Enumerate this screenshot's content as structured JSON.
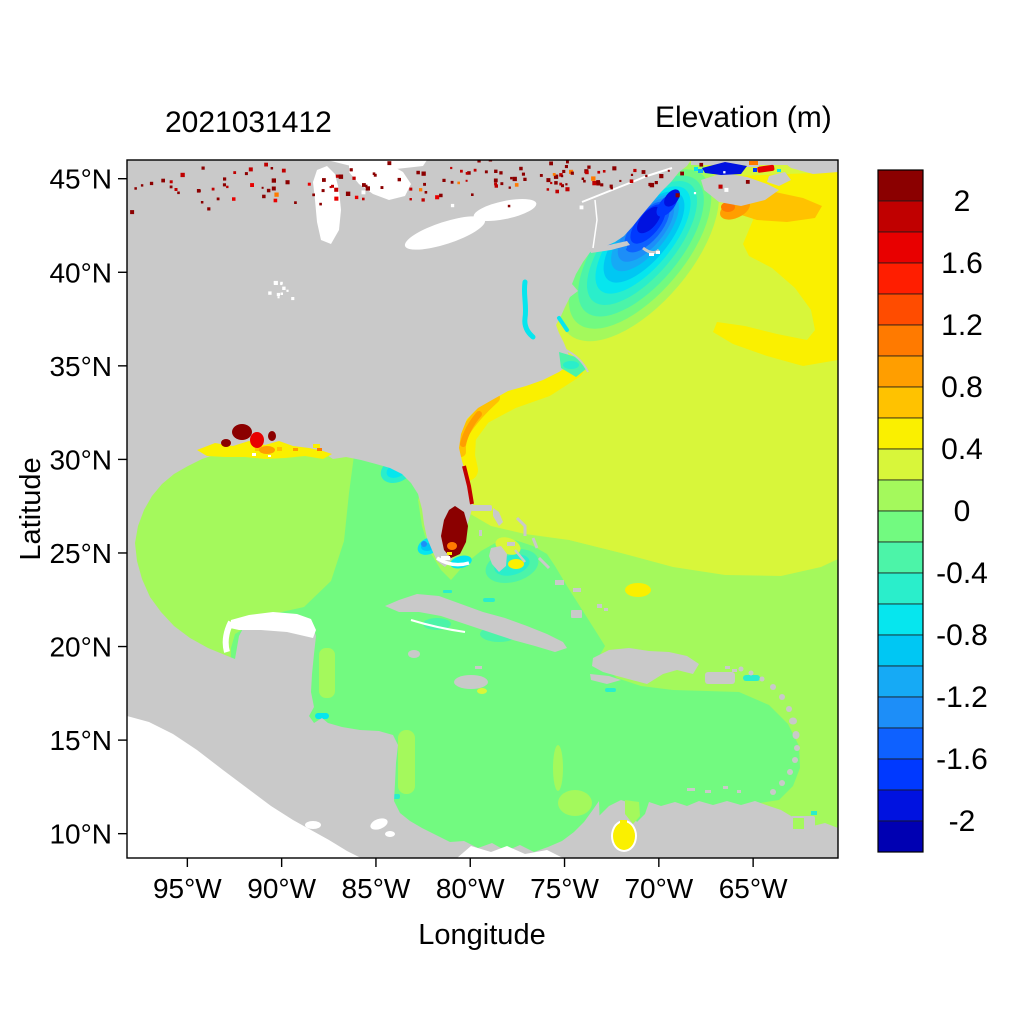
{
  "chart_data": {
    "type": "heatmap",
    "title": "2021031412",
    "colorbar_title": "Elevation (m)",
    "xlabel": "Longitude",
    "ylabel": "Latitude",
    "xlim": [
      -98.2,
      -60.5
    ],
    "ylim": [
      8.7,
      46.0
    ],
    "x_ticks": [
      {
        "v": -95,
        "label": "95°W"
      },
      {
        "v": -90,
        "label": "90°W"
      },
      {
        "v": -85,
        "label": "85°W"
      },
      {
        "v": -80,
        "label": "80°W"
      },
      {
        "v": -75,
        "label": "75°W"
      },
      {
        "v": -70,
        "label": "70°W"
      },
      {
        "v": -65,
        "label": "65°W"
      }
    ],
    "y_ticks": [
      {
        "v": 45,
        "label": "45°N"
      },
      {
        "v": 40,
        "label": "40°N"
      },
      {
        "v": 35,
        "label": "35°N"
      },
      {
        "v": 30,
        "label": "30°N"
      },
      {
        "v": 25,
        "label": "25°N"
      },
      {
        "v": 20,
        "label": "20°N"
      },
      {
        "v": 15,
        "label": "15°N"
      },
      {
        "v": 10,
        "label": "10°N"
      }
    ],
    "colorbar": {
      "units": "m",
      "step": 0.2,
      "tick_labels": [
        {
          "v": 2,
          "label": "2"
        },
        {
          "v": 1.6,
          "label": "1.6"
        },
        {
          "v": 1.2,
          "label": "1.2"
        },
        {
          "v": 0.8,
          "label": "0.8"
        },
        {
          "v": 0.4,
          "label": "0.4"
        },
        {
          "v": 0,
          "label": "0"
        },
        {
          "v": -0.4,
          "label": "-0.4"
        },
        {
          "v": -0.8,
          "label": "-0.8"
        },
        {
          "v": -1.2,
          "label": "-1.2"
        },
        {
          "v": -1.6,
          "label": "-1.6"
        },
        {
          "v": -2,
          "label": "-2"
        }
      ],
      "levels": [
        {
          "min": 2.0,
          "max": 2.2,
          "color": "#8B0000"
        },
        {
          "min": 1.8,
          "max": 2.0,
          "color": "#C00000"
        },
        {
          "min": 1.6,
          "max": 1.8,
          "color": "#E80000"
        },
        {
          "min": 1.4,
          "max": 1.6,
          "color": "#FF1E00"
        },
        {
          "min": 1.2,
          "max": 1.4,
          "color": "#FF4C00"
        },
        {
          "min": 1.0,
          "max": 1.2,
          "color": "#FF7A00"
        },
        {
          "min": 0.8,
          "max": 1.0,
          "color": "#FF9E00"
        },
        {
          "min": 0.6,
          "max": 0.8,
          "color": "#FFC200"
        },
        {
          "min": 0.4,
          "max": 0.6,
          "color": "#FAF000"
        },
        {
          "min": 0.2,
          "max": 0.4,
          "color": "#D8F63A"
        },
        {
          "min": 0.0,
          "max": 0.2,
          "color": "#A4F95C"
        },
        {
          "min": -0.2,
          "max": 0.0,
          "color": "#72FA80"
        },
        {
          "min": -0.4,
          "max": -0.2,
          "color": "#4CF4A8"
        },
        {
          "min": -0.6,
          "max": -0.4,
          "color": "#2AEECB"
        },
        {
          "min": -0.8,
          "max": -0.6,
          "color": "#06E6EE"
        },
        {
          "min": -1.0,
          "max": -0.8,
          "color": "#00C7F3"
        },
        {
          "min": -1.2,
          "max": -1.0,
          "color": "#16AAF5"
        },
        {
          "min": -1.4,
          "max": -1.2,
          "color": "#1D8EF8"
        },
        {
          "min": -1.6,
          "max": -1.4,
          "color": "#0E61FF"
        },
        {
          "min": -1.8,
          "max": -1.6,
          "color": "#0039FF"
        },
        {
          "min": -2.0,
          "max": -1.8,
          "color": "#0012E0"
        },
        {
          "min": -2.2,
          "max": -2.0,
          "color": "#0000B2"
        }
      ]
    },
    "land_color": "#C9C9C9",
    "nodata_color": "#FFFFFF",
    "regions": [
      {
        "name": "open_atlantic",
        "value_range_m": [
          0.2,
          0.4
        ]
      },
      {
        "name": "northeast_atlantic_yellow_lobe",
        "value_range_m": [
          0.4,
          0.6
        ]
      },
      {
        "name": "scotian_shelf_orange_patch",
        "value_range_m": [
          0.6,
          1.0
        ]
      },
      {
        "name": "gulf_of_maine_bay_of_fundy_bullseye",
        "value_range_m": [
          -2.2,
          -0.2
        ]
      },
      {
        "name": "gulf_of_st_lawrence",
        "value_range_m": [
          -2.2,
          -1.8
        ]
      },
      {
        "name": "northumberland_strait_sliver",
        "value_range_m": [
          1.6,
          1.8
        ]
      },
      {
        "name": "new_jersey_long_island_coastal_patch",
        "value_range_m": [
          0.4,
          0.6
        ]
      },
      {
        "name": "southeast_us_coastal_band",
        "value_range_m": [
          0.4,
          1.0
        ]
      },
      {
        "name": "carolina_sounds",
        "value_range_m": [
          -0.6,
          -0.2
        ]
      },
      {
        "name": "chesapeake_delaware_bays",
        "value_range_m": [
          -0.8,
          -0.6
        ]
      },
      {
        "name": "western_gulf_of_mexico",
        "value_range_m": [
          0.0,
          0.2
        ]
      },
      {
        "name": "eastern_gulf_of_mexico",
        "value_range_m": [
          -0.2,
          0.0
        ]
      },
      {
        "name": "west_florida_shelf_patch",
        "value_range_m": [
          -0.8,
          -0.4
        ]
      },
      {
        "name": "louisiana_mississippi_coast_surge",
        "value_range_m": [
          0.4,
          2.2
        ]
      },
      {
        "name": "southeast_florida_coast_surge",
        "value_range_m": [
          1.8,
          2.2
        ]
      },
      {
        "name": "florida_straits_patch",
        "value_range_m": [
          -1.4,
          -0.6
        ]
      },
      {
        "name": "bahamas_eddy",
        "value_range_m": [
          -0.6,
          0.6
        ]
      },
      {
        "name": "caribbean_sea",
        "value_range_m": [
          -0.2,
          0.0
        ]
      },
      {
        "name": "atlantic_north_of_greater_antilles",
        "value_range_m": [
          0.0,
          0.2
        ]
      },
      {
        "name": "lake_maracaibo",
        "value_range_m": [
          0.4,
          0.6
        ]
      },
      {
        "name": "coastal_estuary_speckles",
        "value_range_m": [
          1.8,
          2.2
        ]
      }
    ]
  }
}
